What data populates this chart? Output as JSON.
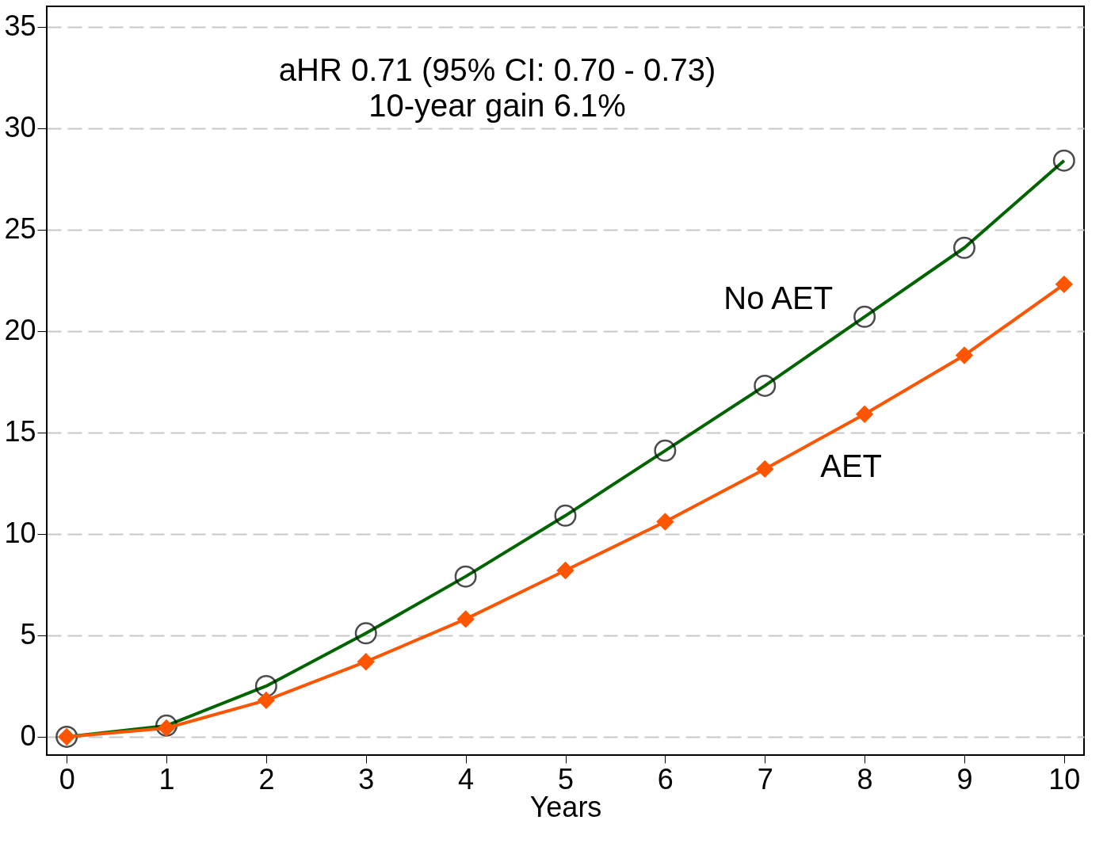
{
  "chart_data": {
    "type": "line",
    "xlabel": "Years",
    "x": [
      0,
      1,
      2,
      3,
      4,
      5,
      6,
      7,
      8,
      9,
      10
    ],
    "series": [
      {
        "name": "No AET",
        "color": "#006400",
        "marker": "circle",
        "values": [
          0,
          0.55,
          2.5,
          5.1,
          7.9,
          10.9,
          14.1,
          17.3,
          20.7,
          24.1,
          28.4
        ]
      },
      {
        "name": "AET",
        "color": "#ff5500",
        "marker": "diamond",
        "values": [
          0,
          0.43,
          1.8,
          3.7,
          5.8,
          8.2,
          10.6,
          13.2,
          15.9,
          18.8,
          22.3
        ]
      }
    ],
    "xlim": [
      -0.2,
      10.2
    ],
    "xticks": [
      0,
      1,
      2,
      3,
      4,
      5,
      6,
      7,
      8,
      9,
      10
    ],
    "ylim": [
      -0.9,
      36
    ],
    "yticks": [
      0,
      5,
      10,
      15,
      20,
      25,
      30,
      35
    ],
    "grid": "y",
    "annotations": [
      "aHR 0.71 (95% CI: 0.70 - 0.73)",
      "10-year gain 6.1%"
    ]
  }
}
